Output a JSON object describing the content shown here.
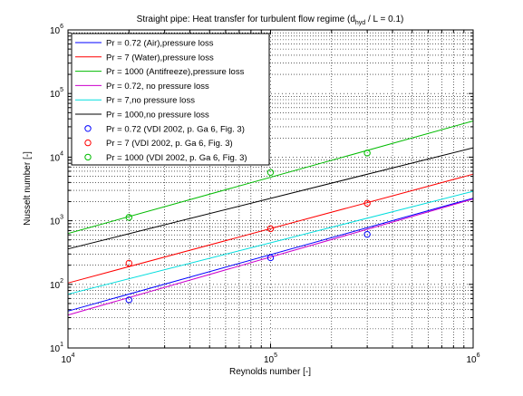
{
  "chart_data": {
    "type": "line",
    "title_main": "Straight pipe: Heat transfer for turbulent flow regime (d",
    "title_sub": "hyd",
    "title_tail": " / L = 0.1)",
    "xlabel": "Reynolds number [-]",
    "ylabel": "Nusselt number [-]",
    "xscale": "log",
    "yscale": "log",
    "xlim": [
      10000,
      1000000
    ],
    "ylim": [
      10,
      1000000
    ],
    "grid": true,
    "legend_position": "top-left",
    "x_ticks": [
      {
        "value": 10000,
        "base": "10",
        "exp": "4"
      },
      {
        "value": 100000,
        "base": "10",
        "exp": "5"
      },
      {
        "value": 1000000,
        "base": "10",
        "exp": "6"
      }
    ],
    "y_ticks": [
      {
        "value": 10,
        "base": "10",
        "exp": "1"
      },
      {
        "value": 100,
        "base": "10",
        "exp": "2"
      },
      {
        "value": 1000,
        "base": "10",
        "exp": "3"
      },
      {
        "value": 10000,
        "base": "10",
        "exp": "4"
      },
      {
        "value": 100000,
        "base": "10",
        "exp": "5"
      },
      {
        "value": 1000000,
        "base": "10",
        "exp": "6"
      }
    ],
    "series": [
      {
        "name": "Pr = 0.72 (Air),pressure loss",
        "kind": "line",
        "color": "#0000ff",
        "x": [
          10000,
          1000000
        ],
        "y": [
          38,
          2260
        ]
      },
      {
        "name": "Pr = 7 (Water),pressure loss",
        "kind": "line",
        "color": "#ff0000",
        "x": [
          10000,
          1000000
        ],
        "y": [
          105,
          5400
        ]
      },
      {
        "name": "Pr = 1000 (Antifreeze),pressure loss",
        "kind": "line",
        "color": "#00bb00",
        "x": [
          10000,
          1000000
        ],
        "y": [
          630,
          37000
        ]
      },
      {
        "name": "Pr = 0.72, no pressure loss",
        "kind": "line",
        "color": "#cc00cc",
        "x": [
          10000,
          1000000
        ],
        "y": [
          33,
          2200
        ]
      },
      {
        "name": "Pr = 7,no pressure loss",
        "kind": "line",
        "color": "#00dddd",
        "x": [
          10000,
          1000000
        ],
        "y": [
          70,
          2900
        ]
      },
      {
        "name": "Pr = 1000,no pressure loss",
        "kind": "line",
        "color": "#000000",
        "x": [
          10000,
          1000000
        ],
        "y": [
          360,
          14000
        ]
      },
      {
        "name": "Pr = 0.72 (VDI 2002, p. Ga 6, Fig. 3)",
        "kind": "marker",
        "color": "#0000ff",
        "x": [
          20000,
          100000,
          300000
        ],
        "y": [
          57,
          262,
          610
        ]
      },
      {
        "name": "Pr = 7 (VDI 2002, p. Ga 6, Fig. 3)",
        "kind": "marker",
        "color": "#ff0000",
        "x": [
          20000,
          100000,
          300000
        ],
        "y": [
          215,
          750,
          1880
        ]
      },
      {
        "name": "Pr = 1000 (VDI 2002, p. Ga 6, Fig. 3)",
        "kind": "marker",
        "color": "#00bb00",
        "x": [
          20000,
          100000,
          300000
        ],
        "y": [
          1130,
          5750,
          11600
        ]
      }
    ]
  }
}
